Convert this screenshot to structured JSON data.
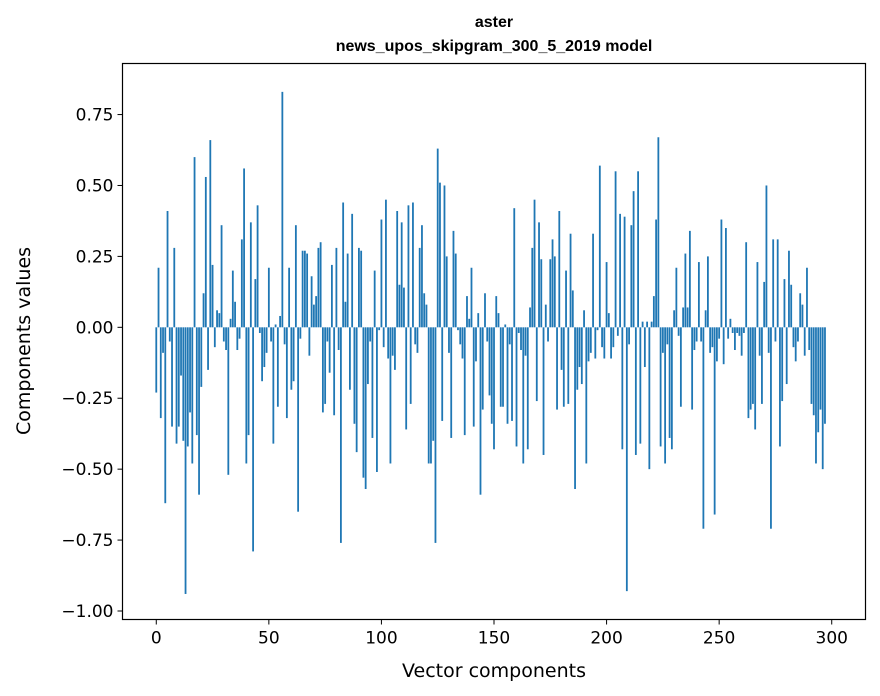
{
  "chart_data": {
    "type": "bar",
    "title": "aster",
    "subtitle": "news_upos_skipgram_300_5_2019 model",
    "xlabel": "Vector components",
    "ylabel": "Components values",
    "xlim": [
      -15,
      315
    ],
    "ylim": [
      -1.03,
      0.93
    ],
    "xticks": [
      0,
      50,
      100,
      150,
      200,
      250,
      300
    ],
    "xtick_labels": [
      "0",
      "50",
      "100",
      "150",
      "200",
      "250",
      "300"
    ],
    "yticks": [
      -1.0,
      -0.75,
      -0.5,
      -0.25,
      0.0,
      0.25,
      0.5,
      0.75
    ],
    "ytick_labels": [
      "−1.00",
      "−0.75",
      "−0.50",
      "−0.25",
      "0.00",
      "0.25",
      "0.50",
      "0.75"
    ],
    "bar_color": "#1f77b4",
    "grid": false,
    "values": [
      -0.23,
      0.21,
      -0.32,
      -0.09,
      -0.62,
      0.41,
      -0.05,
      -0.35,
      0.28,
      -0.41,
      -0.35,
      -0.17,
      -0.4,
      -0.94,
      -0.42,
      -0.3,
      -0.48,
      0.6,
      -0.38,
      -0.59,
      -0.21,
      0.12,
      0.53,
      -0.15,
      0.66,
      0.22,
      -0.07,
      0.06,
      0.05,
      0.36,
      -0.05,
      -0.08,
      -0.52,
      0.03,
      0.2,
      0.09,
      -0.08,
      -0.04,
      0.31,
      0.56,
      -0.48,
      -0.38,
      0.37,
      -0.79,
      0.17,
      0.43,
      -0.02,
      -0.19,
      -0.14,
      -0.09,
      0.21,
      -0.05,
      -0.41,
      0.01,
      -0.28,
      0.04,
      0.83,
      -0.06,
      -0.32,
      0.21,
      -0.22,
      -0.19,
      0.36,
      -0.65,
      -0.04,
      0.27,
      0.27,
      0.26,
      -0.1,
      0.18,
      0.08,
      0.11,
      0.28,
      0.3,
      -0.3,
      -0.27,
      -0.05,
      -0.16,
      0.22,
      -0.31,
      0.28,
      -0.08,
      -0.76,
      0.44,
      0.09,
      0.26,
      -0.22,
      0.4,
      -0.34,
      -0.44,
      0.28,
      0.27,
      -0.53,
      -0.57,
      -0.2,
      -0.05,
      -0.39,
      0.2,
      -0.51,
      -0.01,
      0.38,
      -0.07,
      0.45,
      -0.11,
      -0.48,
      -0.1,
      -0.15,
      0.41,
      0.15,
      0.37,
      0.14,
      -0.36,
      0.43,
      -0.27,
      0.44,
      -0.06,
      -0.09,
      0.28,
      0.36,
      0.12,
      0.08,
      -0.48,
      -0.48,
      -0.4,
      -0.76,
      0.63,
      0.51,
      -0.33,
      0.5,
      0.25,
      -0.09,
      -0.39,
      0.34,
      0.26,
      -0.01,
      -0.06,
      -0.11,
      -0.38,
      0.11,
      0.03,
      0.21,
      -0.35,
      -0.12,
      0.05,
      -0.59,
      -0.29,
      0.12,
      -0.05,
      -0.24,
      -0.34,
      -0.43,
      0.11,
      0.05,
      -0.28,
      -0.28,
      0.01,
      -0.34,
      -0.06,
      -0.33,
      0.42,
      -0.42,
      -0.02,
      -0.08,
      -0.48,
      -0.1,
      -0.43,
      0.07,
      0.28,
      0.45,
      -0.26,
      0.37,
      0.24,
      -0.45,
      0.08,
      -0.05,
      0.24,
      0.31,
      0.25,
      -0.29,
      0.41,
      -0.15,
      -0.28,
      0.2,
      -0.27,
      0.33,
      0.13,
      -0.57,
      -0.22,
      -0.14,
      -0.2,
      0.06,
      -0.48,
      -0.12,
      -0.09,
      0.33,
      -0.11,
      -0.01,
      0.57,
      -0.07,
      -0.11,
      0.23,
      0.05,
      -0.11,
      -0.07,
      0.55,
      -0.03,
      0.4,
      -0.43,
      0.39,
      -0.93,
      -0.06,
      0.36,
      0.48,
      -0.45,
      0.55,
      -0.41,
      0.02,
      -0.14,
      0.02,
      -0.5,
      0.02,
      0.11,
      0.38,
      0.67,
      -0.42,
      -0.09,
      -0.48,
      -0.06,
      -0.39,
      -0.43,
      0.06,
      0.21,
      -0.03,
      -0.28,
      0.07,
      0.26,
      0.07,
      0.34,
      -0.29,
      -0.08,
      -0.05,
      0.23,
      -0.05,
      -0.71,
      0.06,
      0.25,
      -0.09,
      -0.07,
      -0.66,
      -0.12,
      -0.04,
      0.38,
      -0.13,
      0.35,
      -0.04,
      0.03,
      -0.02,
      -0.08,
      -0.02,
      -0.03,
      -0.1,
      -0.02,
      0.3,
      -0.32,
      -0.29,
      -0.27,
      -0.36,
      0.23,
      -0.1,
      -0.27,
      0.16,
      0.5,
      -0.09,
      -0.71,
      0.31,
      -0.05,
      0.31,
      -0.42,
      -0.26,
      0.17,
      -0.2,
      0.27,
      0.15,
      -0.07,
      -0.12,
      -0.05,
      0.12,
      0.08,
      -0.1,
      0.21,
      -0.08,
      -0.27,
      -0.31,
      -0.48,
      -0.37,
      -0.29,
      -0.5,
      -0.34
    ]
  }
}
